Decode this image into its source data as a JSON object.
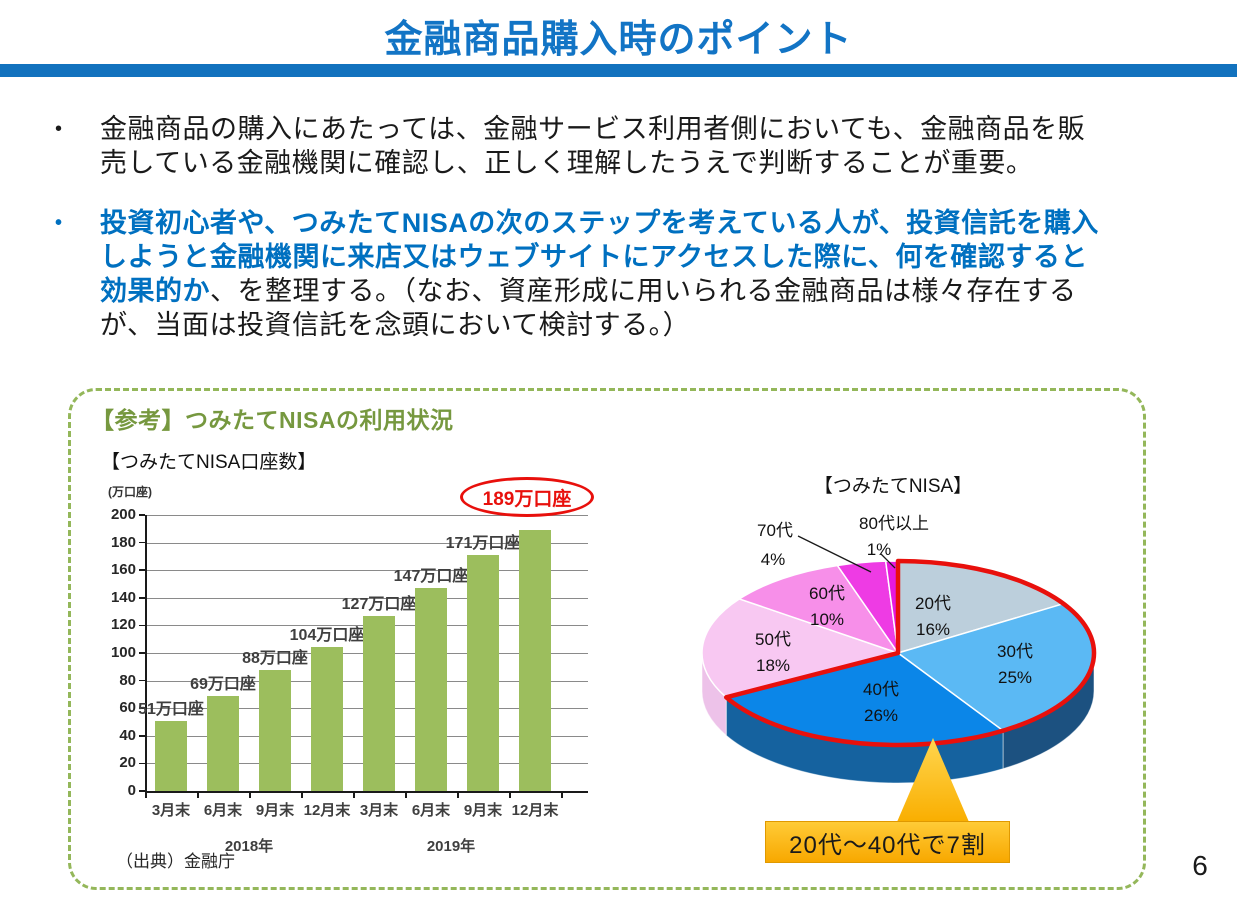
{
  "title": "金融商品購入時のポイント",
  "bullets": [
    {
      "marker": "•",
      "lines": [
        {
          "segments": [
            {
              "text": "金融商品の購入にあたっては、金融サービス利用者側においても、金融商品を販",
              "style": "plain"
            }
          ]
        },
        {
          "segments": [
            {
              "text": "売している金融機関に確認し、正しく理解したうえで判断することが重要。",
              "style": "plain"
            }
          ]
        }
      ]
    },
    {
      "marker": "•",
      "lines": [
        {
          "segments": [
            {
              "text": "投資初心者や、つみたてNISAの次のステップを考えている人が、投資信託を購入",
              "style": "blue-bold"
            }
          ]
        },
        {
          "segments": [
            {
              "text": "しようと金融機関に来店又はウェブサイトにアクセスした際に、何を確認すると",
              "style": "blue-bold"
            }
          ]
        },
        {
          "segments": [
            {
              "text": "効果的か",
              "style": "blue-bold"
            },
            {
              "text": "、を整理する。（なお、資産形成に用いられる金融商品は様々存在する",
              "style": "plain"
            }
          ]
        },
        {
          "segments": [
            {
              "text": "が、当面は投資信託を念頭において検討する。）",
              "style": "plain"
            }
          ]
        }
      ]
    }
  ],
  "reference": {
    "heading": "【参考】つみたてNISAの利用状況",
    "source": "（出典）金融庁"
  },
  "chart_data": [
    {
      "type": "bar",
      "title": "【つみたてNISA口座数】",
      "unit_label": "(万口座)",
      "categories": [
        "3月末",
        "6月末",
        "9月末",
        "12月末",
        "3月末",
        "6月末",
        "9月末",
        "12月末"
      ],
      "year_groups": [
        "2018年",
        "2019年"
      ],
      "values": [
        51,
        69,
        88,
        104,
        127,
        147,
        171,
        189
      ],
      "value_labels": [
        "51万口座",
        "69万口座",
        "88万口座",
        "104万口座",
        "127万口座",
        "147万口座",
        "171万口座"
      ],
      "highlight_label": "189万口座",
      "ylabel": "万口座",
      "ylim": [
        0,
        200
      ],
      "ytick_step": 20,
      "grid": true,
      "bar_color": "#9CBE5D",
      "highlight_color": "#E8100C",
      "source": "（出典）金融庁"
    },
    {
      "type": "pie",
      "title": "【つみたてNISA】",
      "slices": [
        {
          "label": "20代",
          "value": 16,
          "pct": "16%",
          "color": "#BCCFDC"
        },
        {
          "label": "30代",
          "value": 25,
          "pct": "25%",
          "color": "#5BB9F4"
        },
        {
          "label": "40代",
          "value": 26,
          "pct": "26%",
          "color": "#0B86E8"
        },
        {
          "label": "50代",
          "value": 18,
          "pct": "18%",
          "color": "#F8C8F2"
        },
        {
          "label": "60代",
          "value": 10,
          "pct": "10%",
          "color": "#F78FE9"
        },
        {
          "label": "70代",
          "value": 4,
          "pct": "4%",
          "color": "#EE3BE4"
        },
        {
          "label": "80代以上",
          "value": 1,
          "pct": "1%",
          "color": "#E619DE"
        }
      ],
      "start_angle_deg": 0,
      "direction": "clockwise",
      "highlighted_slices": [
        "20代",
        "30代",
        "40代"
      ],
      "highlight_color": "#E8100C",
      "highlight_note": "20代～40代で7割",
      "legend_position": "labels-on-slices"
    }
  ],
  "colors": {
    "accent_blue": "#1272BE",
    "text_blue": "#0070C0",
    "heading_green": "#76983F",
    "border_green": "#94B75A",
    "bar_green": "#9CBE5D",
    "red": "#E8100C",
    "callout_orange": "#F8A800"
  },
  "page_number": "6"
}
